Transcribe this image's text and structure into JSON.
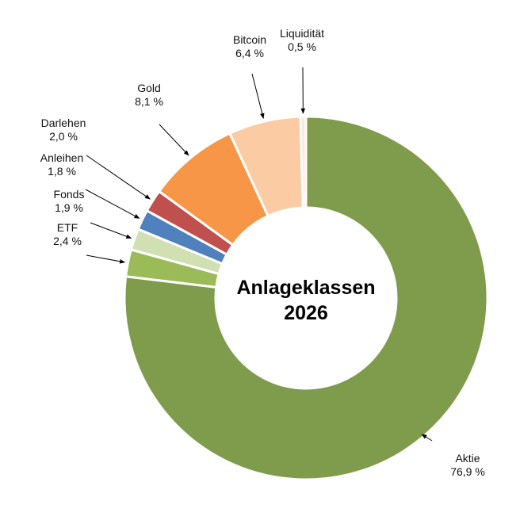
{
  "chart_data": {
    "type": "pie",
    "donut": true,
    "title_lines": [
      "Anlageklassen",
      "2026"
    ],
    "start_from": "12 o'clock",
    "direction": "clockwise",
    "slices": [
      {
        "name": "Aktie",
        "value": 76.9,
        "value_label": "76,9 %",
        "color": "#7E9C4B"
      },
      {
        "name": "ETF",
        "value": 2.4,
        "value_label": "2,4 %",
        "color": "#9BBB59"
      },
      {
        "name": "Fonds",
        "value": 1.9,
        "value_label": "1,9 %",
        "color": "#D1E0B2"
      },
      {
        "name": "Anleihen",
        "value": 1.8,
        "value_label": "1,8 %",
        "color": "#4F81BD"
      },
      {
        "name": "Darlehen",
        "value": 2.0,
        "value_label": "2,0 %",
        "color": "#C0504D"
      },
      {
        "name": "Gold",
        "value": 8.1,
        "value_label": "8,1 %",
        "color": "#F79646"
      },
      {
        "name": "Bitcoin",
        "value": 6.4,
        "value_label": "6,4 %",
        "color": "#FBCBA4"
      },
      {
        "name": "Liquidität",
        "value": 0.5,
        "value_label": "0,5 %",
        "color": "#FDE9D9"
      }
    ]
  }
}
